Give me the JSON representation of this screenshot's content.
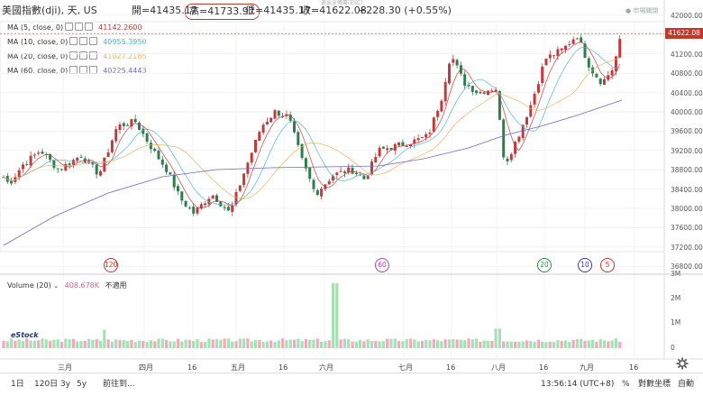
{
  "header": {
    "symbol": "美國指數(dji), 天, US",
    "open": "開=41435.17",
    "high": "高=41733.97",
    "low": "低=41435.17",
    "close": "收=41622.08",
    "change": "+228.30 (+0.55%)",
    "esc_hint": "退出全螢幕(ESC)",
    "market_status": "市場關閉"
  },
  "indicators": [
    {
      "label": "MA (5, close, 0)",
      "value": "41142.2600",
      "color": "#c23b3b"
    },
    {
      "label": "MA (10, close, 0)",
      "value": "40955.3950",
      "color": "#4fb3c9"
    },
    {
      "label": "MA (20, close, 0)",
      "value": "41027.2185",
      "color": "#e8b25a"
    },
    {
      "label": "MA (60, close, 0)",
      "value": "40225.4443",
      "color": "#6b6bb5"
    }
  ],
  "price_axis": [
    "42000.00",
    "41600.00",
    "41200.00",
    "40800.00",
    "40400.00",
    "40000.00",
    "39600.00",
    "39200.00",
    "38800.00",
    "38400.00",
    "38000.00",
    "37600.00",
    "37200.00",
    "36800.00"
  ],
  "last_price": "41622.08",
  "volume": {
    "label": "Volume (20)",
    "value": "408.678K",
    "na": "不適用",
    "axis": [
      "3M",
      "2M",
      "1M",
      "0"
    ]
  },
  "x_axis": [
    "三月",
    "四月",
    "16",
    "五月",
    "16",
    "六月",
    "七月",
    "16",
    "八月",
    "16",
    "九月",
    "16"
  ],
  "markers": [
    {
      "text": "120",
      "color": "#c0392b"
    },
    {
      "text": "60",
      "color": "#b041b0"
    },
    {
      "text": "20",
      "color": "#2e8b3e"
    },
    {
      "text": "10",
      "color": "#3a3aa8"
    },
    {
      "text": "5",
      "color": "#c0392b"
    }
  ],
  "footer": {
    "ranges": [
      "1日",
      "120日",
      "3y",
      "5y"
    ],
    "goto": "前往到...",
    "time": "13:56:14 (UTC+8)",
    "percent": "%",
    "log": "對數坐標",
    "auto": "自動"
  },
  "logo_text": "eStock",
  "colors": {
    "up": "#c23b3b",
    "down": "#2e7d4f",
    "vol_up": "#f4a6c3",
    "vol_down": "#a6e0b3"
  }
}
